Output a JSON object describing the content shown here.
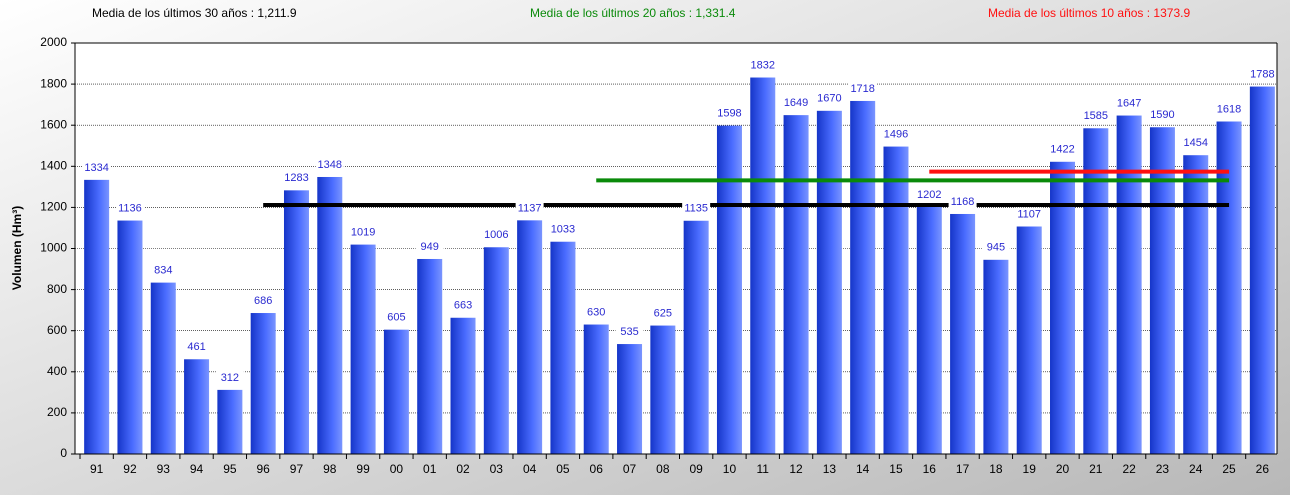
{
  "chart_data": {
    "type": "bar",
    "y_label": "Volumen (Hm³)",
    "categories": [
      "91",
      "92",
      "93",
      "94",
      "95",
      "96",
      "97",
      "98",
      "99",
      "00",
      "01",
      "02",
      "03",
      "04",
      "05",
      "06",
      "07",
      "08",
      "09",
      "10",
      "11",
      "12",
      "13",
      "14",
      "15",
      "16",
      "17",
      "18",
      "19",
      "20",
      "21",
      "22",
      "23",
      "24",
      "25",
      "26"
    ],
    "values": [
      1334,
      1136,
      834,
      461,
      312,
      686,
      1283,
      1348,
      1019,
      605,
      949,
      663,
      1006,
      1137,
      1033,
      630,
      535,
      625,
      1135,
      1598,
      1832,
      1649,
      1670,
      1718,
      1496,
      1202,
      1168,
      945,
      1107,
      1422,
      1585,
      1647,
      1590,
      1454,
      1618,
      1788
    ],
    "color": "#2f55e8",
    "ylim": [
      0,
      2000
    ],
    "yticks": [
      0,
      200,
      400,
      600,
      800,
      1000,
      1200,
      1400,
      1600,
      1800,
      2000
    ],
    "grid": true,
    "reference_lines": [
      {
        "label": "Media de los últimos 30 años : 1,211.9",
        "value": 1211.9,
        "color": "#000000",
        "from": "96",
        "to": "25"
      },
      {
        "label": "Media de los últimos 20 años : 1,331.4",
        "value": 1331.4,
        "color": "#0a8a0a",
        "from": "06",
        "to": "25"
      },
      {
        "label": "Media de los últimos 10 años : 1373.9",
        "value": 1373.9,
        "color": "#ff1010",
        "from": "16",
        "to": "25"
      }
    ]
  }
}
